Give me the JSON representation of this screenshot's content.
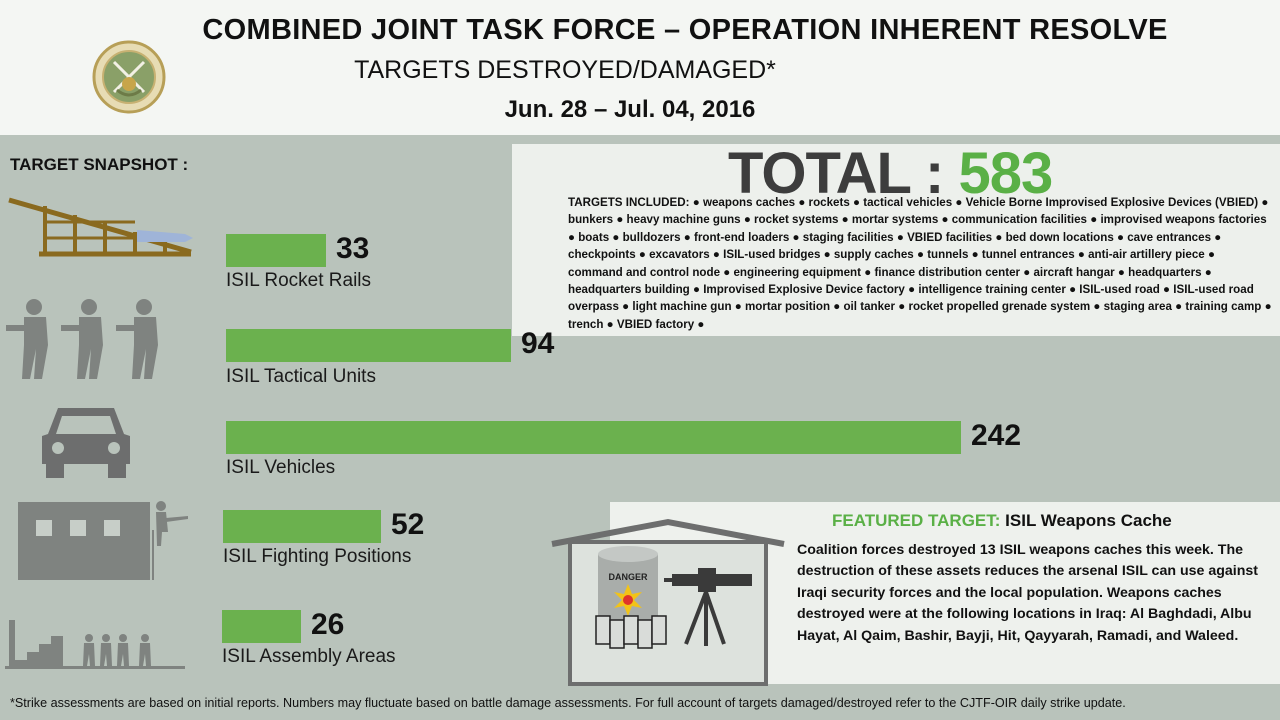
{
  "header": {
    "title": "COMBINED JOINT TASK FORCE – OPERATION INHERENT RESOLVE",
    "subtitle": "TARGETS DESTROYED/DAMAGED*",
    "dates": "Jun. 28 – Jul. 04,  2016"
  },
  "snapshot_label": "TARGET SNAPSHOT :",
  "total": {
    "label": "TOTAL :",
    "value": "583"
  },
  "targets_included": "TARGETS INCLUDED: ● weapons caches ● rockets ● tactical vehicles ● Vehicle Borne Improvised Explosive Devices (VBIED) ● bunkers ● heavy machine guns ● rocket systems ● mortar systems ● communication facilities ● improvised weapons factories ● boats ● bulldozers ● front-end loaders ● staging facilities ● VBIED facilities ● bed down locations ● cave entrances ● checkpoints ● excavators ● ISIL-used bridges ● supply caches ● tunnels ● tunnel entrances ● anti-air artillery piece ● command and control node ● engineering equipment ● finance distribution center ● aircraft hangar ● headquarters ● headquarters building ● Improvised Explosive Device factory ● intelligence training center ● ISIL-used road ● ISIL-used road overpass ● light machine gun ● mortar position ● oil tanker ● rocket propelled grenade system ● staging area ● training camp ● trench ● VBIED factory ●",
  "chart_data": {
    "type": "bar",
    "orientation": "horizontal",
    "title": "TARGET SNAPSHOT :",
    "categories": [
      "ISIL Rocket Rails",
      "ISIL Tactical Units",
      "ISIL Vehicles",
      "ISIL Fighting Positions",
      "ISIL Assembly Areas"
    ],
    "values": [
      33,
      94,
      242,
      52,
      26
    ],
    "xlim": [
      0,
      242
    ],
    "icons": [
      "rocket-rail-icon",
      "soldiers-icon",
      "car-icon",
      "building-icon",
      "assembly-area-icon"
    ],
    "bar_color": "#6bb14e"
  },
  "featured": {
    "label": "FEATURED TARGET:",
    "name": "ISIL Weapons Cache",
    "danger_label": "DANGER",
    "body": "Coalition forces destroyed 13 ISIL weapons caches this week. The destruction of these assets reduces the arsenal ISIL can use against Iraqi security forces and the local population. Weapons caches destroyed were at the following locations in Iraq: Al Baghdadi, Albu Hayat, Al Qaim, Bashir, Bayji, Hit, Qayyarah, Ramadi, and Waleed."
  },
  "footnote": "*Strike assessments are based on initial reports. Numbers may fluctuate based on battle damage assessments. For full account of targets damaged/destroyed refer to the CJTF-OIR daily strike update.",
  "colors": {
    "background": "#b9c3bb",
    "accent_green": "#5ab046",
    "bar_green": "#6bb14e",
    "icon_gray": "#6d6e6e"
  }
}
